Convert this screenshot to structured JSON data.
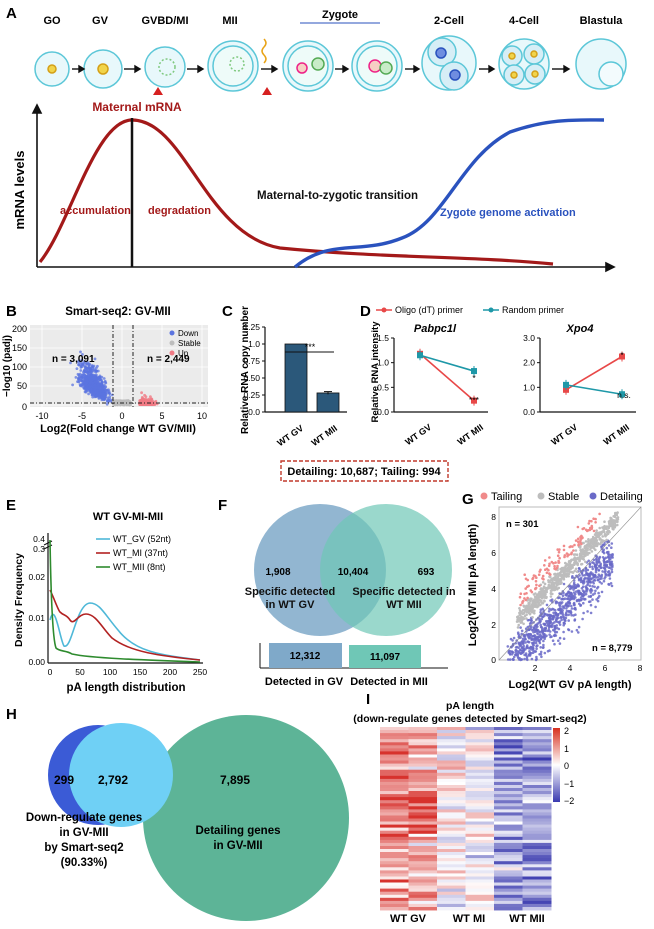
{
  "panels": {
    "A": "A",
    "B": "B",
    "C": "C",
    "D": "D",
    "E": "E",
    "F": "F",
    "G": "G",
    "H": "H",
    "I": "I"
  },
  "A": {
    "stages": [
      "GO",
      "GV",
      "GVBD/MI",
      "MII",
      "Zygote",
      "2-Cell",
      "4-Cell",
      "Blastula"
    ],
    "ylabel": "mRNA levels",
    "maternal": "Maternal mRNA",
    "accumulation": "accumulation",
    "degradation": "degradation",
    "mzt": "Maternal-to-zygotic transition",
    "zga": "Zygote genome activation",
    "colors": {
      "maternal": "#a31919",
      "zygotic": "#2a52be"
    }
  },
  "B": {
    "title": "Smart-seq2: GV-MII",
    "ylabel": "−log10 (padj)",
    "xlabel": "Log2(Fold change WT GV/MII)",
    "legend": [
      "Down",
      "Stable",
      "Up"
    ],
    "n_down": "n = 3,091",
    "n_up": "n = 2,449",
    "xticks": [
      "-10",
      "-5",
      "0",
      "5",
      "10"
    ],
    "yticks": [
      "0",
      "50",
      "100",
      "150",
      "200"
    ],
    "colors": {
      "down": "#5b74e0",
      "stable": "#bdbdbd",
      "up": "#f07a85"
    }
  },
  "C": {
    "ylabel": "Relative RNA copy number",
    "sig": "***",
    "yticks": [
      "0.0",
      "0.25",
      "0.50",
      "0.75",
      "1.0",
      "1.25"
    ],
    "chart_data": {
      "type": "bar",
      "categories": [
        "WT GV",
        "WT MII"
      ],
      "values": [
        1.0,
        0.28
      ],
      "errors": [
        0,
        0.02
      ],
      "ylim": [
        0,
        1.25
      ],
      "ylabel": "Relative RNA copy number"
    }
  },
  "D": {
    "legend": [
      "Oligo (dT) primer",
      "Random primer"
    ],
    "ylabel": "Relative RNA intensity",
    "gene1": "Pabpc1l",
    "gene2": "Xpo4",
    "cats": [
      "WT GV",
      "WT MII"
    ],
    "yticks1": [
      "0.0",
      "0.5",
      "1.0",
      "1.5"
    ],
    "yticks2": [
      "0.0",
      "1.0",
      "2.0",
      "3.0"
    ],
    "sig1": [
      "*",
      "***"
    ],
    "sig2": [
      "*",
      "n.s."
    ],
    "chart_data": [
      {
        "type": "line",
        "title": "Pabpc1l",
        "categories": [
          "WT GV",
          "WT MII"
        ],
        "series": [
          {
            "name": "Oligo (dT) primer",
            "values": [
              1.18,
              0.23
            ]
          },
          {
            "name": "Random primer",
            "values": [
              1.15,
              0.83
            ]
          }
        ],
        "ylim": [
          0,
          1.5
        ]
      },
      {
        "type": "line",
        "title": "Xpo4",
        "categories": [
          "WT GV",
          "WT MII"
        ],
        "series": [
          {
            "name": "Oligo (dT) primer",
            "values": [
              0.9,
              2.25
            ]
          },
          {
            "name": "Random primer",
            "values": [
              1.1,
              0.72
            ]
          }
        ],
        "ylim": [
          0,
          3.0
        ]
      }
    ]
  },
  "E": {
    "title": "WT GV-MI-MII",
    "ylabel": "Density Frequency",
    "xlabel": "pA length distribution",
    "legend": [
      "WT_GV  (52nt)",
      "WT_MI  (37nt)",
      "WT_MII  (8nt)"
    ],
    "xticks": [
      "0",
      "50",
      "100",
      "150",
      "200",
      "250"
    ],
    "yticks": [
      "0.00",
      "0.01",
      "0.02"
    ],
    "ybreak": [
      "0.3",
      "0.4"
    ],
    "colors": {
      "gv": "#4fb8d8",
      "mi": "#b22222",
      "mii": "#2e8b2e"
    }
  },
  "F": {
    "header": "Detailing: 10,687; Tailing: 994",
    "left_only": "1,908",
    "overlap": "10,404",
    "right_only": "693",
    "left_label": "Specific detected in WT GV",
    "right_label": "Specific detected in WT MII",
    "bar_gv": "12,312",
    "bar_mii": "11,097",
    "cap_gv": "Detected in GV",
    "cap_mii": "Detected in MII"
  },
  "G": {
    "legend": [
      "Tailing",
      "Stable",
      "Detailing"
    ],
    "n_top": "n = 301",
    "n_bottom": "n = 8,779",
    "ylabel": "Log2(WT MII pA length)",
    "xlabel": "Log2(WT GV pA length)",
    "xticks": [
      "2",
      "4",
      "6",
      "8"
    ],
    "yticks": [
      "0",
      "2",
      "4",
      "6",
      "8"
    ]
  },
  "H": {
    "left": "299",
    "mid": "2,792",
    "right": "7,895",
    "left_label_1": "Down-regulate genes",
    "left_label_2": "in GV-MII",
    "left_label_3": "by Smart-seq2",
    "left_label_4": "(90.33%)",
    "right_label_1": "Detailing genes",
    "right_label_2": "in GV-MII"
  },
  "I": {
    "title": "pA length",
    "subtitle": "(down-regulate genes detected by Smart-seq2)",
    "cols": [
      "WT GV",
      "WT MI",
      "WT MII"
    ],
    "scale": [
      "2",
      "1",
      "0",
      "−1",
      "−2"
    ]
  }
}
